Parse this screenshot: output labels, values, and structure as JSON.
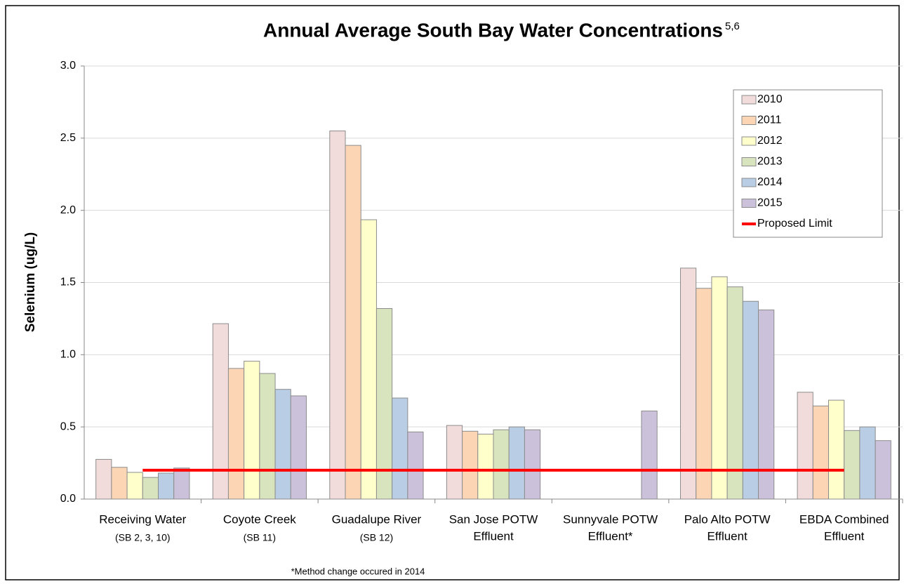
{
  "chart_data": {
    "type": "bar",
    "title": "Annual Average South Bay Water Concentrations",
    "title_superscript": "5,6",
    "y_label": "Selenium (ug/L)",
    "footnote": "*Method change occured in 2014",
    "categories": [
      [
        "Receiving Water",
        "(SB 2, 3, 10)"
      ],
      [
        "Coyote Creek",
        "(SB 11)"
      ],
      [
        "Guadalupe River",
        "(SB 12)"
      ],
      [
        "San Jose POTW",
        "Effluent"
      ],
      [
        "Sunnyvale POTW",
        "Effluent*"
      ],
      [
        "Palo Alto POTW",
        "Effluent"
      ],
      [
        "EBDA Combined",
        "Effluent"
      ]
    ],
    "series": [
      {
        "name": "2010",
        "color": "#f2dcdb",
        "values": [
          0.275,
          1.215,
          2.55,
          0.51,
          null,
          1.6,
          0.74
        ]
      },
      {
        "name": "2011",
        "color": "#fcd5b5",
        "values": [
          0.22,
          0.905,
          2.45,
          0.47,
          null,
          1.46,
          0.645
        ]
      },
      {
        "name": "2012",
        "color": "#ffffcc",
        "values": [
          0.185,
          0.955,
          1.935,
          0.45,
          null,
          1.54,
          0.685
        ]
      },
      {
        "name": "2013",
        "color": "#d7e4bd",
        "values": [
          0.15,
          0.87,
          1.32,
          0.48,
          null,
          1.47,
          0.475
        ]
      },
      {
        "name": "2014",
        "color": "#b9cde5",
        "values": [
          0.18,
          0.76,
          0.7,
          0.5,
          null,
          1.37,
          0.5
        ]
      },
      {
        "name": "2015",
        "color": "#ccc1da",
        "values": [
          0.215,
          0.715,
          0.465,
          0.48,
          0.61,
          1.31,
          0.405
        ]
      },
      {
        "name": "Proposed Limit",
        "color": "#ff0000",
        "type": "line",
        "values": [
          0.2,
          0.2,
          0.2,
          0.2,
          0.2,
          0.2,
          0.2
        ]
      }
    ],
    "ylim": [
      0,
      3
    ],
    "yticks": [
      {
        "value": 0,
        "label": "0.0"
      },
      0.5,
      {
        "value": 1,
        "label": "1.0"
      },
      1.5,
      {
        "value": 2,
        "label": "2.0"
      },
      2.5,
      {
        "value": 3,
        "label": "3.0"
      }
    ],
    "grid": true,
    "legend": "top-right"
  }
}
